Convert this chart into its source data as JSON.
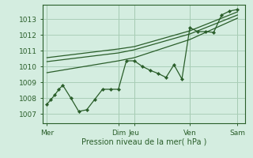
{
  "bg_color": "#d4ede0",
  "grid_color": "#aacfb8",
  "line_color": "#2a5e2a",
  "xlabel": "Pression niveau de la mer( hPa )",
  "xlabel_color": "#2a5e2a",
  "ylabel_color": "#2a5e2a",
  "yticks": [
    1007,
    1008,
    1009,
    1010,
    1011,
    1012,
    1013
  ],
  "ylim": [
    1006.4,
    1013.9
  ],
  "xtick_labels": [
    "Mer",
    "Dim",
    "Jeu",
    "Ven",
    "Sam"
  ],
  "xtick_positions": [
    0,
    9,
    11,
    18,
    24
  ],
  "xlim": [
    -0.5,
    25.0
  ],
  "vline_positions": [
    0,
    9,
    11,
    18,
    24
  ],
  "line1_x": [
    0,
    0.5,
    1,
    1.5,
    2,
    3,
    4,
    5,
    6,
    7,
    8,
    9,
    10,
    11,
    12,
    13,
    14,
    15,
    16,
    17,
    18,
    19,
    20,
    21,
    22,
    23,
    24
  ],
  "line1_y": [
    1007.6,
    1007.9,
    1008.2,
    1008.55,
    1008.8,
    1008.0,
    1007.15,
    1007.25,
    1007.9,
    1008.55,
    1008.55,
    1008.55,
    1010.35,
    1010.35,
    1010.0,
    1009.75,
    1009.55,
    1009.3,
    1010.1,
    1009.2,
    1012.45,
    1012.2,
    1012.2,
    1012.15,
    1013.25,
    1013.5,
    1013.6
  ],
  "line2_x": [
    0,
    9,
    11,
    18,
    24
  ],
  "line2_y": [
    1010.55,
    1011.1,
    1011.25,
    1012.25,
    1013.45
  ],
  "line3_x": [
    0,
    9,
    11,
    18,
    24
  ],
  "line3_y": [
    1010.3,
    1010.85,
    1011.05,
    1012.05,
    1013.25
  ],
  "line4_x": [
    0,
    9,
    11,
    18,
    24
  ],
  "line4_y": [
    1009.6,
    1010.35,
    1010.55,
    1011.7,
    1013.05
  ]
}
